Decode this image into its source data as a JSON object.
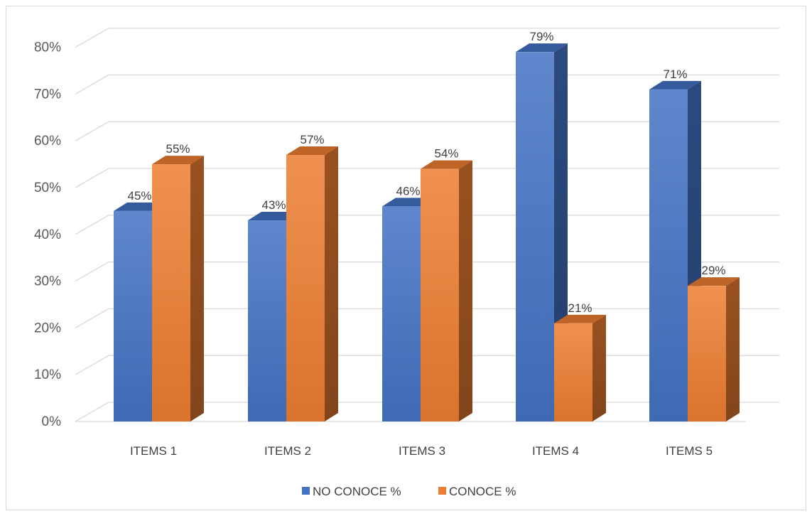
{
  "chart_data": {
    "type": "bar",
    "style": "3d-clustered-column",
    "categories": [
      "ITEMS 1",
      "ITEMS 2",
      "ITEMS 3",
      "ITEMS 4",
      "ITEMS 5"
    ],
    "series": [
      {
        "name": "NO CONOCE %",
        "values": [
          45,
          43,
          46,
          79,
          71
        ],
        "labels": [
          "45%",
          "43%",
          "46%",
          "79%",
          "71%"
        ],
        "color": "#4472C4"
      },
      {
        "name": "CONOCE %",
        "values": [
          55,
          57,
          54,
          21,
          29
        ],
        "labels": [
          "55%",
          "57%",
          "54%",
          "21%",
          "29%"
        ],
        "color": "#ED7D31"
      }
    ],
    "y_ticks": [
      "0%",
      "10%",
      "20%",
      "30%",
      "40%",
      "50%",
      "60%",
      "70%",
      "80%"
    ],
    "ylim": [
      0,
      80
    ],
    "grid": true,
    "legend_position": "bottom"
  }
}
